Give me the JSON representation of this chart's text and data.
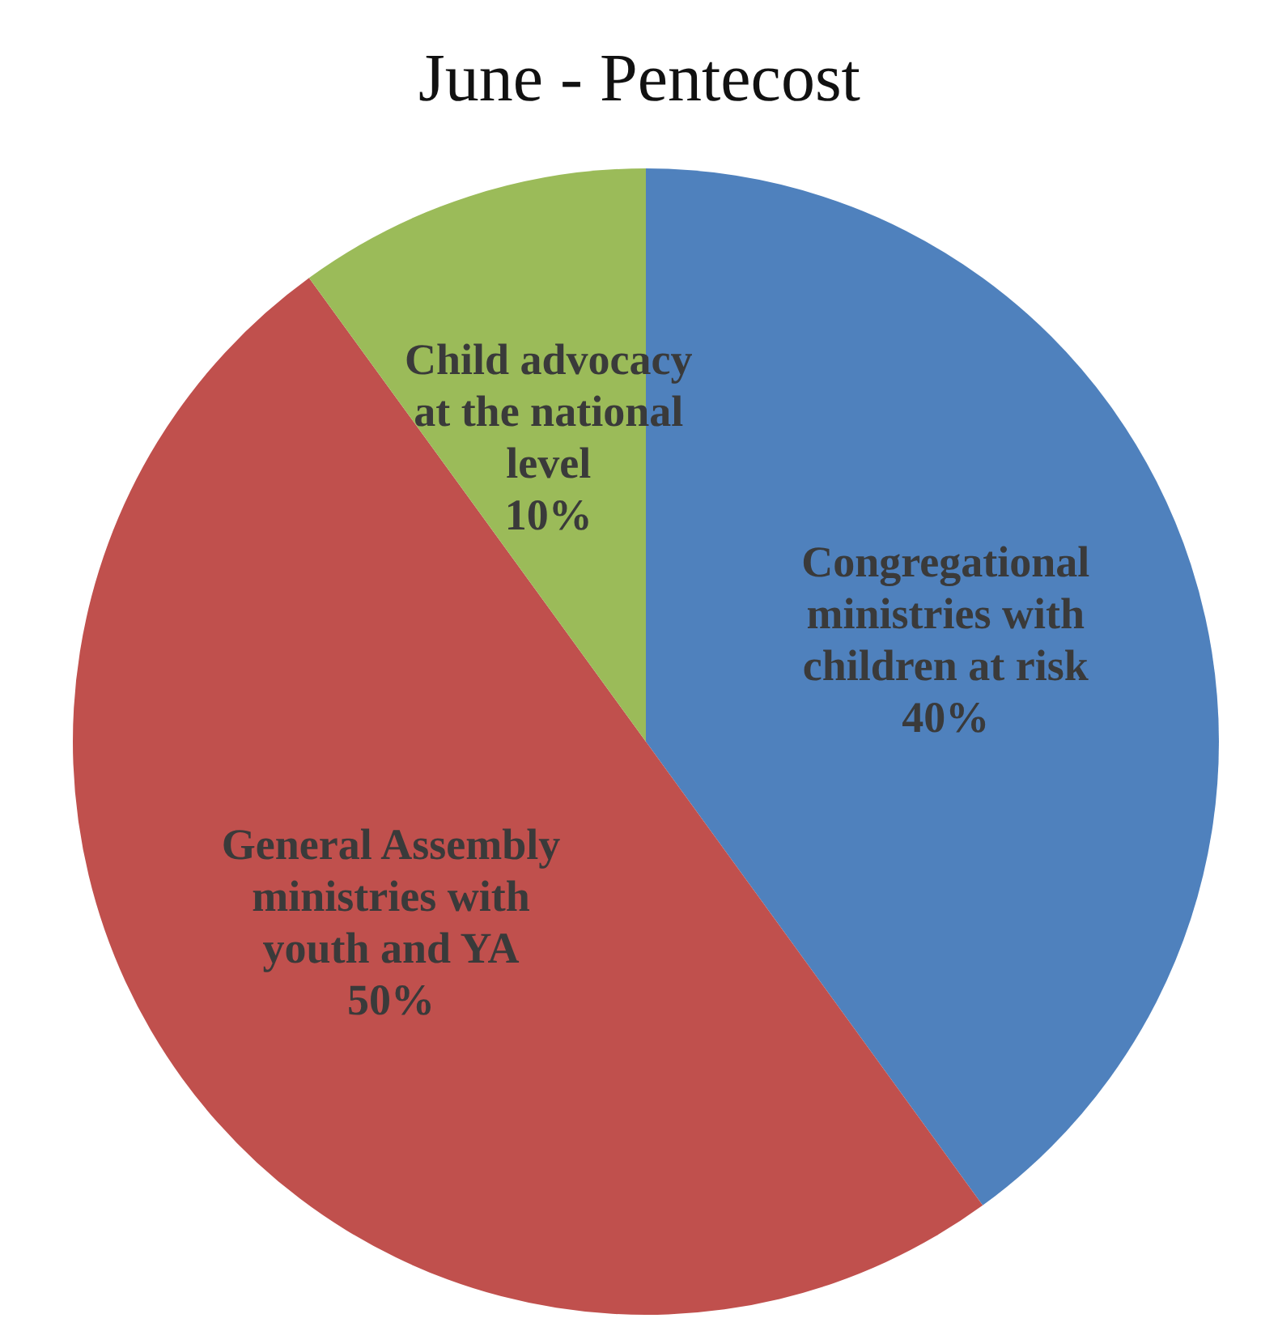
{
  "chart_data": {
    "type": "pie",
    "title": "June - Pentecost",
    "categories": [
      "Congregational\nministries with\nchildren at risk",
      "General Assembly\nministries with\nyouth and YA",
      "Child advocacy\nat the national\nlevel"
    ],
    "values": [
      40,
      50,
      10
    ],
    "colors": [
      "#4f81bd",
      "#c0504d",
      "#9bbb59"
    ],
    "value_labels": [
      "40%",
      "50%",
      "10%"
    ]
  }
}
